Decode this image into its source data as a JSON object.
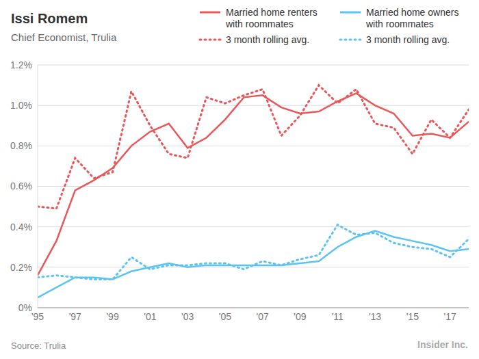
{
  "chart_data": {
    "type": "line",
    "title": "Issi Romem",
    "subtitle": "Chief Economist, Trulia",
    "annotations": [
      "Source: Trulia",
      "Insider Inc."
    ],
    "x": [
      1995,
      1996,
      1997,
      1998,
      1999,
      2000,
      2001,
      2002,
      2003,
      2004,
      2005,
      2006,
      2007,
      2008,
      2009,
      2010,
      2011,
      2012,
      2013,
      2014,
      2015,
      2016,
      2017,
      2018
    ],
    "series": [
      {
        "name": "Married home renters with roommates",
        "color": "#e8585b",
        "line_style": "solid",
        "values": [
          0.16,
          0.33,
          0.58,
          0.63,
          0.69,
          0.8,
          0.87,
          0.91,
          0.79,
          0.84,
          0.93,
          1.04,
          1.05,
          0.99,
          0.96,
          0.97,
          1.02,
          1.06,
          1.0,
          0.96,
          0.85,
          0.86,
          0.84,
          0.92
        ]
      },
      {
        "name": "Married home owners with roommates",
        "color": "#5cc3f2",
        "line_style": "solid",
        "values": [
          0.05,
          0.1,
          0.15,
          0.15,
          0.14,
          0.18,
          0.2,
          0.22,
          0.2,
          0.21,
          0.21,
          0.21,
          0.21,
          0.21,
          0.22,
          0.23,
          0.3,
          0.35,
          0.38,
          0.35,
          0.33,
          0.31,
          0.28,
          0.29
        ]
      },
      {
        "name": "3 month rolling avg.",
        "color": "#e8585b",
        "line_style": "dotted",
        "values": [
          0.5,
          0.49,
          0.74,
          0.64,
          0.67,
          1.07,
          0.9,
          0.76,
          0.74,
          1.04,
          1.01,
          1.05,
          1.08,
          0.85,
          0.95,
          1.1,
          1.01,
          1.08,
          0.91,
          0.89,
          0.76,
          0.93,
          0.84,
          0.98
        ]
      },
      {
        "name": "3 month rolling avg.",
        "color": "#5cc3f2",
        "line_style": "dotted",
        "values": [
          0.15,
          0.16,
          0.15,
          0.14,
          0.14,
          0.25,
          0.19,
          0.21,
          0.21,
          0.22,
          0.22,
          0.19,
          0.23,
          0.21,
          0.24,
          0.26,
          0.41,
          0.36,
          0.37,
          0.32,
          0.3,
          0.29,
          0.25,
          0.34
        ]
      }
    ],
    "xlim": [
      1995,
      2018
    ],
    "xticks": [
      {
        "value": 1995,
        "label": "'95"
      },
      {
        "value": 1997,
        "label": "'97"
      },
      {
        "value": 1999,
        "label": "'99"
      },
      {
        "value": 2001,
        "label": "'01"
      },
      {
        "value": 2003,
        "label": "'03"
      },
      {
        "value": 2005,
        "label": "'05"
      },
      {
        "value": 2007,
        "label": "'07"
      },
      {
        "value": 2009,
        "label": "'09"
      },
      {
        "value": 2011,
        "label": "'11"
      },
      {
        "value": 2013,
        "label": "'13"
      },
      {
        "value": 2015,
        "label": "'15"
      },
      {
        "value": 2017,
        "label": "'17"
      }
    ],
    "ylim": [
      0,
      1.2
    ],
    "yticks": [
      {
        "value": 0,
        "label": "0%"
      },
      {
        "value": 0.2,
        "label": "0.2%"
      },
      {
        "value": 0.4,
        "label": "0.4%"
      },
      {
        "value": 0.6,
        "label": "0.6%"
      },
      {
        "value": 0.8,
        "label": "0.8%"
      },
      {
        "value": 1.0,
        "label": "1.0%"
      },
      {
        "value": 1.2,
        "label": "1.2%"
      }
    ],
    "grid": true,
    "legend": "top-right"
  }
}
